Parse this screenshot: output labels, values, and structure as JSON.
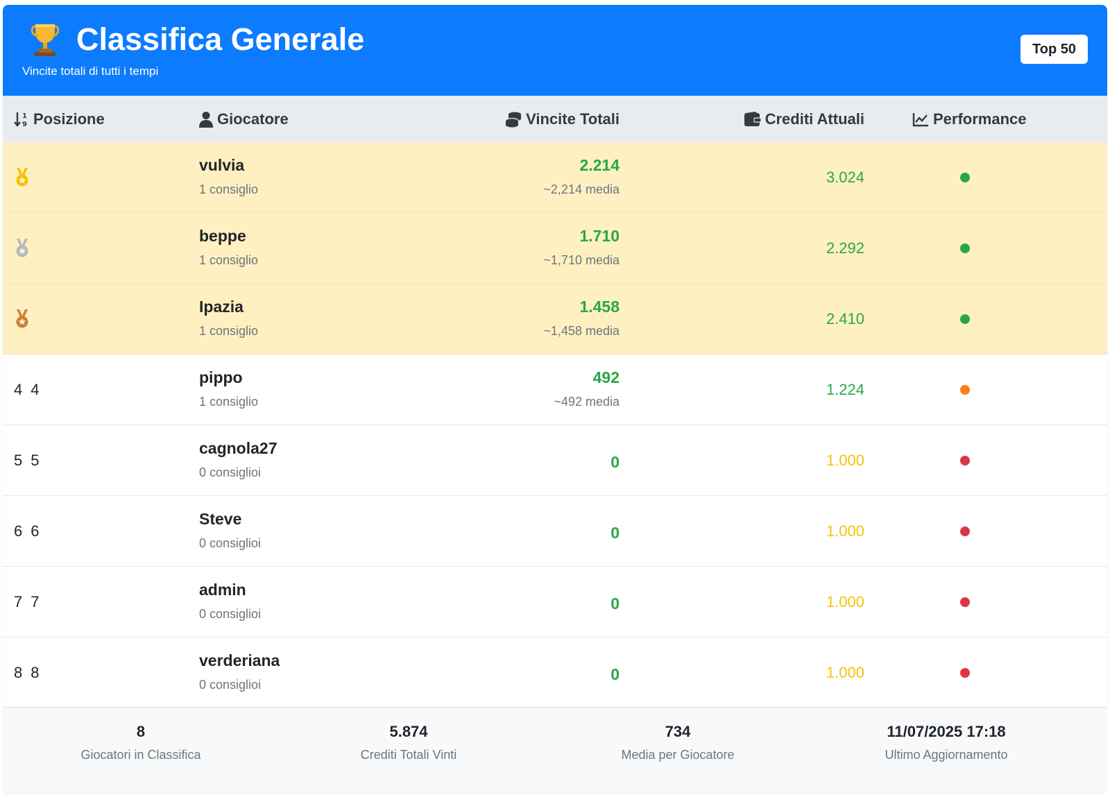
{
  "header": {
    "title": "Classifica Generale",
    "subtitle": "Vincite totali di tutti i tempi",
    "badge": "Top 50",
    "icon": "trophy-icon"
  },
  "columns": {
    "position": "Posizione",
    "player": "Giocatore",
    "wins": "Vincite Totali",
    "credits": "Crediti Attuali",
    "performance": "Performance"
  },
  "colors": {
    "primary": "#0d7bfd",
    "success": "#28a745",
    "warning": "#f5c20c",
    "danger": "#dc3545",
    "orange": "#fd7e14",
    "gold": "#f2c200",
    "silver": "#b8b8b8",
    "bronze": "#cd7f32",
    "top3_row": "#fff0c2"
  },
  "rows": [
    {
      "pos": "1",
      "medal": "gold",
      "name": "vulvia",
      "tips": "1 consiglio",
      "wins": "2.214",
      "avg": "~2,214 media",
      "credits": "3.024",
      "credits_status": "success",
      "perf": "success"
    },
    {
      "pos": "2",
      "medal": "silver",
      "name": "beppe",
      "tips": "1 consiglio",
      "wins": "1.710",
      "avg": "~1,710 media",
      "credits": "2.292",
      "credits_status": "success",
      "perf": "success"
    },
    {
      "pos": "3",
      "medal": "bronze",
      "name": "Ipazia",
      "tips": "1 consiglio",
      "wins": "1.458",
      "avg": "~1,458 media",
      "credits": "2.410",
      "credits_status": "success",
      "perf": "success"
    },
    {
      "pos": "4",
      "pos_a": "4",
      "pos_b": "4",
      "name": "pippo",
      "tips": "1 consiglio",
      "wins": "492",
      "avg": "~492 media",
      "credits": "1.224",
      "credits_status": "success",
      "perf": "orange"
    },
    {
      "pos": "5",
      "pos_a": "5",
      "pos_b": "5",
      "name": "cagnola27",
      "tips": "0 consiglioi",
      "wins": "0",
      "avg": "",
      "credits": "1.000",
      "credits_status": "warning",
      "perf": "danger"
    },
    {
      "pos": "6",
      "pos_a": "6",
      "pos_b": "6",
      "name": "Steve",
      "tips": "0 consiglioi",
      "wins": "0",
      "avg": "",
      "credits": "1.000",
      "credits_status": "warning",
      "perf": "danger"
    },
    {
      "pos": "7",
      "pos_a": "7",
      "pos_b": "7",
      "name": "admin",
      "tips": "0 consiglioi",
      "wins": "0",
      "avg": "",
      "credits": "1.000",
      "credits_status": "warning",
      "perf": "danger"
    },
    {
      "pos": "8",
      "pos_a": "8",
      "pos_b": "8",
      "name": "verderiana",
      "tips": "0 consiglioi",
      "wins": "0",
      "avg": "",
      "credits": "1.000",
      "credits_status": "warning",
      "perf": "danger"
    }
  ],
  "stats": [
    {
      "value": "8",
      "label": "Giocatori in Classifica"
    },
    {
      "value": "5.874",
      "label": "Crediti Totali Vinti"
    },
    {
      "value": "734",
      "label": "Media per Giocatore"
    },
    {
      "value": "11/07/2025 17:18",
      "label": "Ultimo Aggiornamento"
    }
  ]
}
